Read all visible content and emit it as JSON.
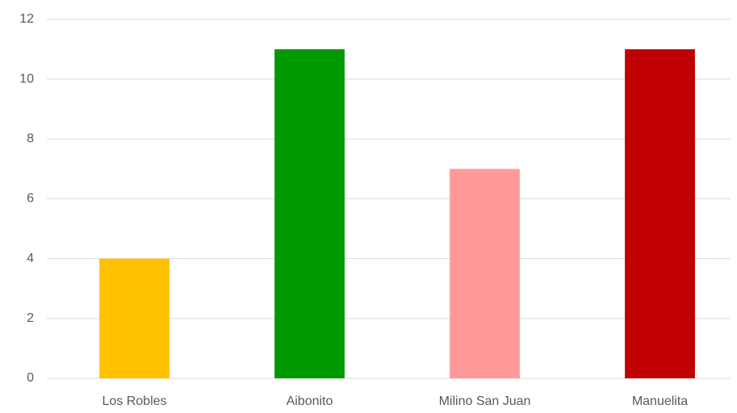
{
  "chart_data": {
    "type": "bar",
    "categories": [
      "Los Robles",
      "Aibonito",
      "Milino San Juan",
      "Manuelita"
    ],
    "values": [
      4,
      11,
      7,
      11
    ],
    "colors": [
      "#ffc000",
      "#009900",
      "#ff9999",
      "#c00000"
    ],
    "ylim": [
      0,
      12
    ],
    "yticks": [
      0,
      2,
      4,
      6,
      8,
      10,
      12
    ],
    "grid": true
  }
}
